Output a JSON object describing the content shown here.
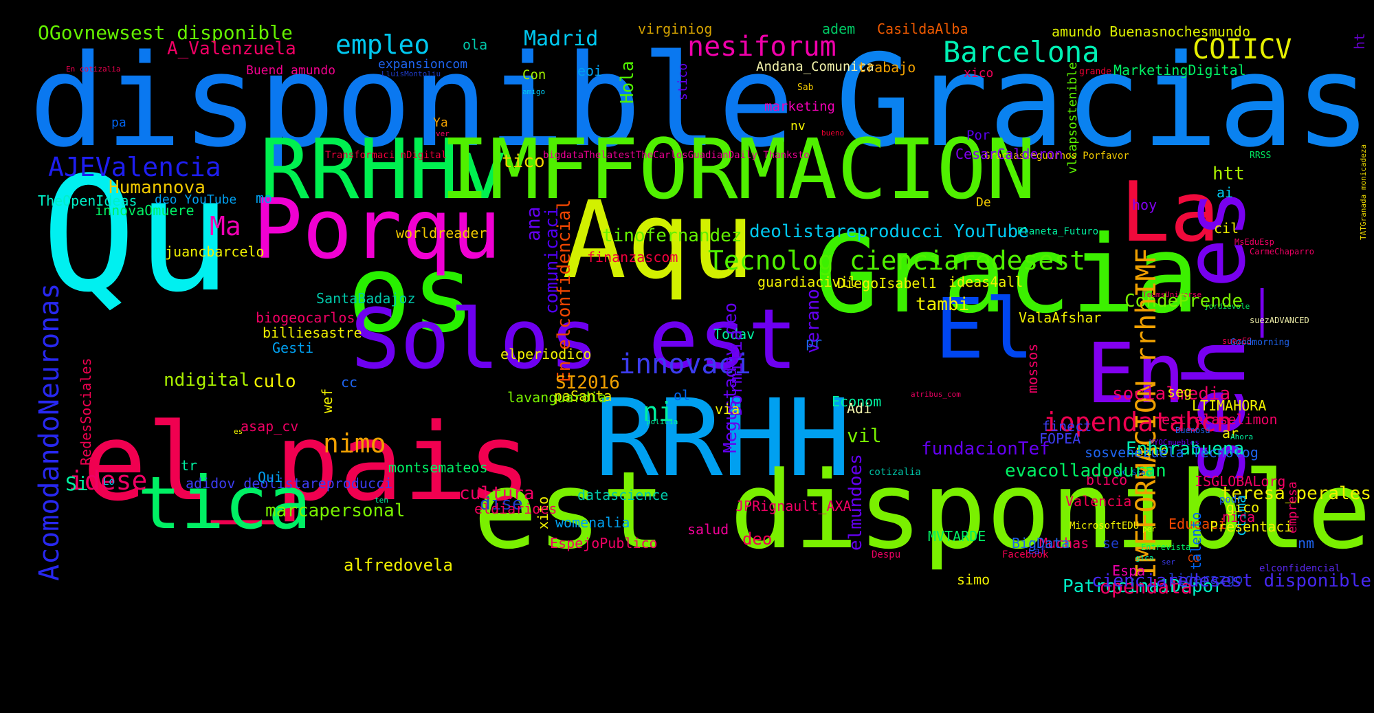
{
  "background": "#000000",
  "words": [
    {
      "text": "disponible",
      "color": "#0a78f0"
    },
    {
      "text": "Gracias",
      "color": "#0a82f0"
    },
    {
      "text": "Qu",
      "color": "#00f0f0"
    },
    {
      "text": "Aqu",
      "color": "#d2f000"
    },
    {
      "text": "os",
      "color": "#28f000"
    },
    {
      "text": "Gracia",
      "color": "#3cf000"
    },
    {
      "text": "RRHHv",
      "color": "#00f050"
    },
    {
      "text": "IMFFORMACION",
      "color": "#50f000"
    },
    {
      "text": "La",
      "color": "#f00a3c"
    },
    {
      "text": "Porqu",
      "color": "#f000d2"
    },
    {
      "text": "Solos est",
      "color": "#6e00f0"
    },
    {
      "text": "El",
      "color": "#0046f0"
    },
    {
      "text": "En",
      "color": "#8200f0"
    },
    {
      "text": "seh_es",
      "color": "#7800f0"
    },
    {
      "text": "el_pais",
      "color": "#f00050"
    },
    {
      "text": "RRHH",
      "color": "#00a0f0"
    },
    {
      "text": "est disponible",
      "color": "#7af000"
    },
    {
      "text": "tica",
      "color": "#00f064"
    },
    {
      "text": "OGovnewsest disponible",
      "color": "#64f000"
    },
    {
      "text": "empleo",
      "color": "#00c8f0"
    },
    {
      "text": "Madrid",
      "color": "#00c8f0"
    },
    {
      "text": "nesiforum",
      "color": "#f000aa"
    },
    {
      "text": "Barcelona",
      "color": "#00f0b4"
    },
    {
      "text": "COIICV",
      "color": "#e6f000"
    },
    {
      "text": "A_Valenzuela",
      "color": "#f00064"
    },
    {
      "text": "ola",
      "color": "#00c8aa"
    },
    {
      "text": "virginiog",
      "color": "#d2a000"
    },
    {
      "text": "adem",
      "color": "#00c864"
    },
    {
      "text": "CasildaAlba",
      "color": "#f05a00"
    },
    {
      "text": "amundo Buenasnochesmundo",
      "color": "#dcf000"
    },
    {
      "text": "ht",
      "color": "#6400c8"
    },
    {
      "text": "En cotizalia",
      "color": "#f00050"
    },
    {
      "text": "Buend amundo",
      "color": "#f0008c"
    },
    {
      "text": "expansioncom",
      "color": "#1e64f0"
    },
    {
      "text": "LluisMontoliu",
      "color": "#1e3cc8"
    },
    {
      "text": "Con",
      "color": "#a0f000"
    },
    {
      "text": "eoi",
      "color": "#00a0f0"
    },
    {
      "text": "Andana_Comunica",
      "color": "#f0f0aa"
    },
    {
      "text": "trabajo",
      "color": "#f0a000"
    },
    {
      "text": "xico",
      "color": "#f0005a"
    },
    {
      "text": "vlcapsostenible",
      "color": "#5af000"
    },
    {
      "text": "grande",
      "color": "#f00032"
    },
    {
      "text": "MarketingDigital",
      "color": "#00f064"
    },
    {
      "text": "Hola",
      "color": "#50f000"
    },
    {
      "text": "amigo",
      "color": "#00c8f0"
    },
    {
      "text": "Sab",
      "color": "#f0c800"
    },
    {
      "text": "stico",
      "color": "#6400f0"
    },
    {
      "text": "marketing",
      "color": "#f000b4"
    },
    {
      "text": "pa",
      "color": "#0064f0"
    },
    {
      "text": "Ya",
      "color": "#f0a000"
    },
    {
      "text": "ver",
      "color": "#f00064"
    },
    {
      "text": "nv",
      "color": "#f0f000"
    },
    {
      "text": "bueno",
      "color": "#f00032"
    },
    {
      "text": "Por",
      "color": "#5a00f0"
    },
    {
      "text": "Transformaci nDigital",
      "color": "#f0003c"
    },
    {
      "text": "bigdataThelatestTheCarlosGuadianDaily Thanksto",
      "color": "#f00096"
    },
    {
      "text": "Graciasseguirnos Porfavor",
      "color": "#f0c800"
    },
    {
      "text": "RRSS",
      "color": "#00f064"
    },
    {
      "text": "TATGranada monicadeza",
      "color": "#f0dc00"
    },
    {
      "text": "AJEValencia",
      "color": "#1e1ef0"
    },
    {
      "text": "tico",
      "color": "#f0d200"
    },
    {
      "text": "htt",
      "color": "#aaf000"
    },
    {
      "text": "CesarCalderon",
      "color": "#8200f0"
    },
    {
      "text": "Humannova",
      "color": "#f0c800"
    },
    {
      "text": "TheOpenIdeas",
      "color": "#00f0c8"
    },
    {
      "text": "deo YouTube",
      "color": "#00a0f0"
    },
    {
      "text": "mo",
      "color": "#00a0f0"
    },
    {
      "text": "De",
      "color": "#f0c800"
    },
    {
      "text": "hoy",
      "color": "#8200f0"
    },
    {
      "text": "ai",
      "color": "#00c8f0"
    },
    {
      "text": "innovaOmuere",
      "color": "#00f064"
    },
    {
      "text": "Ma",
      "color": "#f000b4"
    },
    {
      "text": "worldreader",
      "color": "#f0c800"
    },
    {
      "text": "tinofernandez",
      "color": "#64f000"
    },
    {
      "text": "deolistareproducci YouTube",
      "color": "#00c8f0"
    },
    {
      "text": "Planeta_Futuro",
      "color": "#00f0a0"
    },
    {
      "text": "cil",
      "color": "#f0f000"
    },
    {
      "text": "MsEduEsp",
      "color": "#f00064"
    },
    {
      "text": "CarmeChaparro",
      "color": "#f00064"
    },
    {
      "text": "juancbarcelo",
      "color": "#f0f000"
    },
    {
      "text": "finanzascom",
      "color": "#f0003c"
    },
    {
      "text": "Tecnolog cienciaredesest",
      "color": "#50f000"
    },
    {
      "text": "ana",
      "color": "#6400f0"
    },
    {
      "text": "comunicaci",
      "color": "#5000f0"
    },
    {
      "text": "En elconfidencial",
      "color": "#f04600"
    },
    {
      "text": "guardiacivil",
      "color": "#f0f000"
    },
    {
      "text": "TeamsUniverse",
      "color": "#f00064"
    },
    {
      "text": "DiegoIsabel1",
      "color": "#f0f000"
    },
    {
      "text": "ideas4all",
      "color": "#f0f000"
    },
    {
      "text": "jordievole",
      "color": "#00f064"
    },
    {
      "text": "AcomodandoNeuronas",
      "color": "#2828f0"
    },
    {
      "text": "SantaBadajoz",
      "color": "#00c8aa"
    },
    {
      "text": "tambi",
      "color": "#f0f000"
    },
    {
      "text": "CondePrende",
      "color": "#78f000"
    },
    {
      "text": "biogeocarlos",
      "color": "#f00064"
    },
    {
      "text": "billiesastre",
      "color": "#f0f000"
    },
    {
      "text": "ValaAfshar",
      "color": "#f0f000"
    },
    {
      "text": "IMFFORMACION rrhhIMF",
      "color": "#f0a000"
    },
    {
      "text": "suezADVANCED",
      "color": "#f0f0aa"
    },
    {
      "text": "Gesti",
      "color": "#00a0f0"
    },
    {
      "text": "Todav",
      "color": "#00f0a0"
    },
    {
      "text": "verano",
      "color": "#6400f0"
    },
    {
      "text": "pr",
      "color": "#1e64f0"
    },
    {
      "text": "suezES",
      "color": "#f00050"
    },
    {
      "text": "Goodmorning",
      "color": "#1e64f0"
    },
    {
      "text": "innovaci",
      "color": "#3c3cf0"
    },
    {
      "text": "elperiodico",
      "color": "#f0f000"
    },
    {
      "text": "Megustadov deo",
      "color": "#6400f0"
    },
    {
      "text": "Dormitia",
      "color": "#6400f0"
    },
    {
      "text": "RedesSociales",
      "color": "#f00050"
    },
    {
      "text": "ndigital",
      "color": "#aaf000"
    },
    {
      "text": "culo",
      "color": "#f0f000"
    },
    {
      "text": "cc",
      "color": "#1e64f0"
    },
    {
      "text": "SI2016",
      "color": "#f0a000"
    },
    {
      "text": "paSanta",
      "color": "#f0f000"
    },
    {
      "text": "Econom",
      "color": "#00f0a0"
    },
    {
      "text": "socialmedia",
      "color": "#f00064"
    },
    {
      "text": "seg",
      "color": "#f0f000"
    },
    {
      "text": "wef",
      "color": "#f0f000"
    },
    {
      "text": "ni",
      "color": "#00f0a0"
    },
    {
      "text": "lavanguardia",
      "color": "#78f000"
    },
    {
      "text": "via",
      "color": "#f0f000"
    },
    {
      "text": "ol",
      "color": "#0064f0"
    },
    {
      "text": "atribus_com",
      "color": "#f00064"
    },
    {
      "text": "LTIMAHORA",
      "color": "#f0f000"
    },
    {
      "text": "Adi",
      "color": "#f0f0aa"
    },
    {
      "text": "estrelaselimon",
      "color": "#f00064"
    },
    {
      "text": "iopendatabcn",
      "color": "#f00050"
    },
    {
      "text": "asap_cv",
      "color": "#f00064"
    },
    {
      "text": "nimo",
      "color": "#f0a000"
    },
    {
      "text": "policia",
      "color": "#00f0a0"
    },
    {
      "text": "finect",
      "color": "#3c3cf0"
    },
    {
      "text": "MYOCmuebles",
      "color": "#6400f0"
    },
    {
      "text": "FOPEA",
      "color": "#3c3cf0"
    },
    {
      "text": "mossos",
      "color": "#f00064"
    },
    {
      "text": "nico",
      "color": "#f0f000"
    },
    {
      "text": "Enhorabuena",
      "color": "#00f0b4"
    },
    {
      "text": "es",
      "color": "#f0f000"
    },
    {
      "text": "idese",
      "color": "#f00064"
    },
    {
      "text": "tr",
      "color": "#00f0a0"
    },
    {
      "text": "adidov deolistareproducci",
      "color": "#3c3cf0"
    },
    {
      "text": "Qui",
      "color": "#00a0f0"
    },
    {
      "text": "montsemateos",
      "color": "#00f064"
    },
    {
      "text": "cotizalia",
      "color": "#00c8aa"
    },
    {
      "text": "ISGLOBALorg",
      "color": "#f00064"
    },
    {
      "text": "blico",
      "color": "#f00064"
    },
    {
      "text": "PwC_Spain",
      "color": "#0064f0"
    },
    {
      "text": "Lo",
      "color": "#00c8f0"
    },
    {
      "text": "dise",
      "color": "#1e3cc8"
    },
    {
      "text": "elmundoes",
      "color": "#6400f0"
    },
    {
      "text": "Si",
      "color": "#00f0a0"
    },
    {
      "text": "empresa",
      "color": "#f00064"
    },
    {
      "text": "ctima",
      "color": "#00c8f0"
    },
    {
      "text": "ten",
      "color": "#00f0a0"
    },
    {
      "text": "Valencia",
      "color": "#f00050"
    },
    {
      "text": "Educaci",
      "color": "#f04600"
    },
    {
      "text": "marcapersonal",
      "color": "#78f000"
    },
    {
      "text": "cultura",
      "color": "#f00064"
    },
    {
      "text": "datascience",
      "color": "#00c8aa"
    },
    {
      "text": "deo",
      "color": "#f00050"
    },
    {
      "text": "nica",
      "color": "#f00064"
    },
    {
      "text": "gico",
      "color": "#f0f000"
    },
    {
      "text": "per",
      "color": "#f0f000"
    },
    {
      "text": "xito",
      "color": "#f0f000"
    },
    {
      "text": "Despu",
      "color": "#f00064"
    },
    {
      "text": "Cu",
      "color": "#f04600"
    },
    {
      "text": "gica",
      "color": "#00f0a0"
    },
    {
      "text": "womenalia",
      "color": "#00a0f0"
    },
    {
      "text": "Espa",
      "color": "#f000aa"
    },
    {
      "text": "talento",
      "color": "#0064f0"
    },
    {
      "text": "eldiarioes",
      "color": "#f0005a"
    },
    {
      "text": "JPRignault_AXA",
      "color": "#f00064"
    },
    {
      "text": "teresa_perales",
      "color": "#f0f000"
    },
    {
      "text": "salud",
      "color": "#f00096"
    },
    {
      "text": "Muchas",
      "color": "#f00064"
    },
    {
      "text": "ar",
      "color": "#f0f000"
    },
    {
      "text": "Buenosd",
      "color": "#1e64f0"
    },
    {
      "text": "Ahora",
      "color": "#00f0a0"
    },
    {
      "text": "podr",
      "color": "#1e64f0"
    },
    {
      "text": "MicrosoftEDU",
      "color": "#f0f000"
    },
    {
      "text": "Patrocina1Depor",
      "color": "#00f0c8"
    },
    {
      "text": "simo",
      "color": "#f0f000"
    },
    {
      "text": "opendata",
      "color": "#f00064"
    },
    {
      "text": "BigData",
      "color": "#1e64f0"
    },
    {
      "text": "Facebook",
      "color": "#f00050"
    },
    {
      "text": "Caf",
      "color": "#3c3cf0"
    },
    {
      "text": "EspejoPublico",
      "color": "#f00064"
    },
    {
      "text": "alfredovela",
      "color": "#f0f000"
    },
    {
      "text": "MVTARDE",
      "color": "#00f064"
    },
    {
      "text": "Entrevista",
      "color": "#00f064"
    },
    {
      "text": "ser",
      "color": "#3c3cf0"
    },
    {
      "text": "liderazgo",
      "color": "#1e3cc8"
    },
    {
      "text": "cienciaredesest disponible",
      "color": "#4628f0"
    },
    {
      "text": "elconfidencial",
      "color": "#5a28f0"
    },
    {
      "text": "nm",
      "color": "#1e64f0"
    },
    {
      "text": "se",
      "color": "#1e3cc8"
    },
    {
      "text": "Presentaci",
      "color": "#f0f000"
    },
    {
      "text": "vil",
      "color": "#78f000"
    },
    {
      "text": "evacolladoduran",
      "color": "#00f064"
    },
    {
      "text": "fundacionTef",
      "color": "#6400f0"
    },
    {
      "text": "sosvenezuela Tecnolog",
      "color": "#1e64f0"
    }
  ]
}
